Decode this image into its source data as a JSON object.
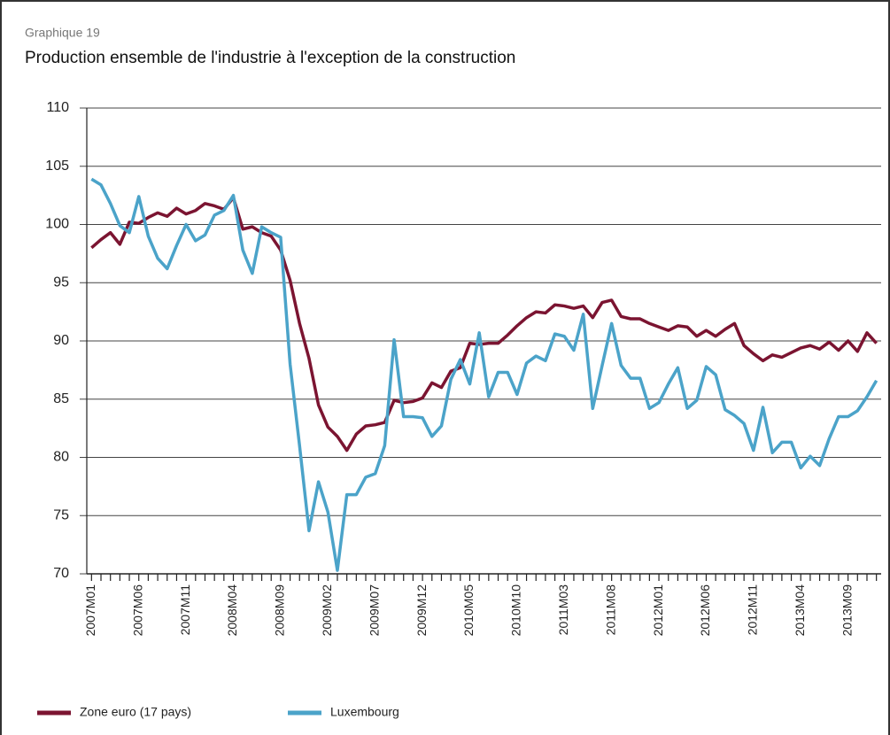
{
  "chart_data": {
    "type": "line",
    "subtitle": "Graphique 19",
    "title": "Production ensemble de l'industrie à l'exception de la construction",
    "categories": [
      "2007M01",
      null,
      null,
      null,
      null,
      "2007M06",
      null,
      null,
      null,
      null,
      "2007M11",
      null,
      null,
      null,
      null,
      "2008M04",
      null,
      null,
      null,
      null,
      "2008M09",
      null,
      null,
      null,
      null,
      "2009M02",
      null,
      null,
      null,
      null,
      "2009M07",
      null,
      null,
      null,
      null,
      "2009M12",
      null,
      null,
      null,
      null,
      "2010M05",
      null,
      null,
      null,
      null,
      "2010M10",
      null,
      null,
      null,
      null,
      "2011M03",
      null,
      null,
      null,
      null,
      "2011M08",
      null,
      null,
      null,
      null,
      "2012M01",
      null,
      null,
      null,
      null,
      "2012M06",
      null,
      null,
      null,
      null,
      "2012M11",
      null,
      null,
      null,
      null,
      "2013M04",
      null,
      null,
      null,
      null,
      "2013M09",
      null,
      null,
      null
    ],
    "series": [
      {
        "name": "Zone euro (17 pays)",
        "color": "#7b1431",
        "values": [
          98,
          98.7,
          99.3,
          98.3,
          100.2,
          100.1,
          100.6,
          101,
          100.7,
          101.4,
          100.9,
          101.2,
          101.8,
          101.6,
          101.3,
          102.3,
          99.6,
          99.8,
          99.3,
          99,
          97.8,
          95.2,
          91.5,
          88.5,
          84.5,
          82.6,
          81.8,
          80.6,
          82,
          82.7,
          82.8,
          83,
          84.9,
          84.7,
          84.8,
          85.1,
          86.4,
          86,
          87.4,
          87.7,
          89.8,
          89.7,
          89.8,
          89.8,
          90.5,
          91.3,
          92,
          92.5,
          92.4,
          93.1,
          93,
          92.8,
          93,
          92,
          93.3,
          93.5,
          92.1,
          91.9,
          91.9,
          91.5,
          91.2,
          90.9,
          91.3,
          91.2,
          90.4,
          90.9,
          90.4,
          91,
          91.5,
          89.6,
          88.9,
          88.3,
          88.8,
          88.6,
          89,
          89.4,
          89.6,
          89.3,
          89.9,
          89.2,
          90,
          89.1,
          90.7,
          89.8
        ]
      },
      {
        "name": "Luxembourg",
        "color": "#4ba3c9",
        "values": [
          103.9,
          103.4,
          101.8,
          99.9,
          99.3,
          102.4,
          99,
          97.1,
          96.2,
          98.2,
          100,
          98.6,
          99.1,
          100.8,
          101.2,
          102.5,
          97.8,
          95.8,
          99.8,
          99.3,
          98.9,
          88,
          81,
          73.7,
          77.9,
          75.3,
          70.3,
          76.8,
          76.8,
          78.3,
          78.6,
          81,
          90.1,
          83.5,
          83.5,
          83.4,
          81.8,
          82.7,
          86.7,
          88.4,
          86.3,
          90.7,
          85.2,
          87.3,
          87.3,
          85.4,
          88.1,
          88.7,
          88.3,
          90.6,
          90.4,
          89.2,
          92.3,
          84.2,
          87.9,
          91.5,
          87.9,
          86.8,
          86.8,
          84.2,
          84.7,
          86.3,
          87.7,
          84.2,
          84.9,
          87.8,
          87.1,
          84.1,
          83.6,
          82.9,
          80.6,
          84.3,
          80.4,
          81.3,
          81.3,
          79.1,
          80.1,
          79.3,
          81.6,
          83.5,
          83.5,
          84,
          85.2,
          86.6
        ]
      }
    ],
    "ylim": [
      70,
      110
    ],
    "yticks": [
      70,
      75,
      80,
      85,
      90,
      95,
      100,
      105,
      110
    ],
    "grid": true,
    "legend": "bottom-left"
  }
}
